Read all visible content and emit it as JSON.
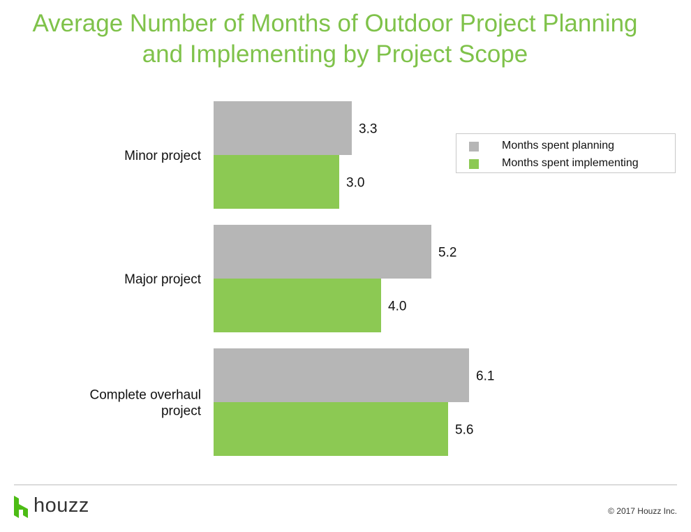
{
  "title": {
    "line1": "Average Number of Months of Outdoor Project Planning",
    "line2": "and Implementing by Project Scope"
  },
  "legend": {
    "planning": "Months spent planning",
    "implementing": "Months spent implementing"
  },
  "colors": {
    "title": "#7fc24a",
    "planning": "#b6b6b6",
    "implementing": "#8cc953"
  },
  "chart_data": {
    "type": "bar",
    "orientation": "horizontal",
    "categories": [
      [
        "Minor project"
      ],
      [
        "Major project"
      ],
      [
        "Complete overhaul",
        "project"
      ]
    ],
    "series": [
      {
        "name": "Months spent planning",
        "values": [
          3.3,
          5.2,
          6.1
        ]
      },
      {
        "name": "Months spent implementing",
        "values": [
          3.0,
          4.0,
          5.6
        ]
      }
    ],
    "value_labels": [
      [
        "3.3",
        "5.2",
        "6.1"
      ],
      [
        "3.0",
        "4.0",
        "5.6"
      ]
    ],
    "xlim": [
      0,
      11
    ],
    "grid": false,
    "legend_position": "top-right",
    "x_axis_visible": false
  },
  "footer": {
    "logo_text": "houzz",
    "copyright": "© 2017 Houzz Inc."
  }
}
